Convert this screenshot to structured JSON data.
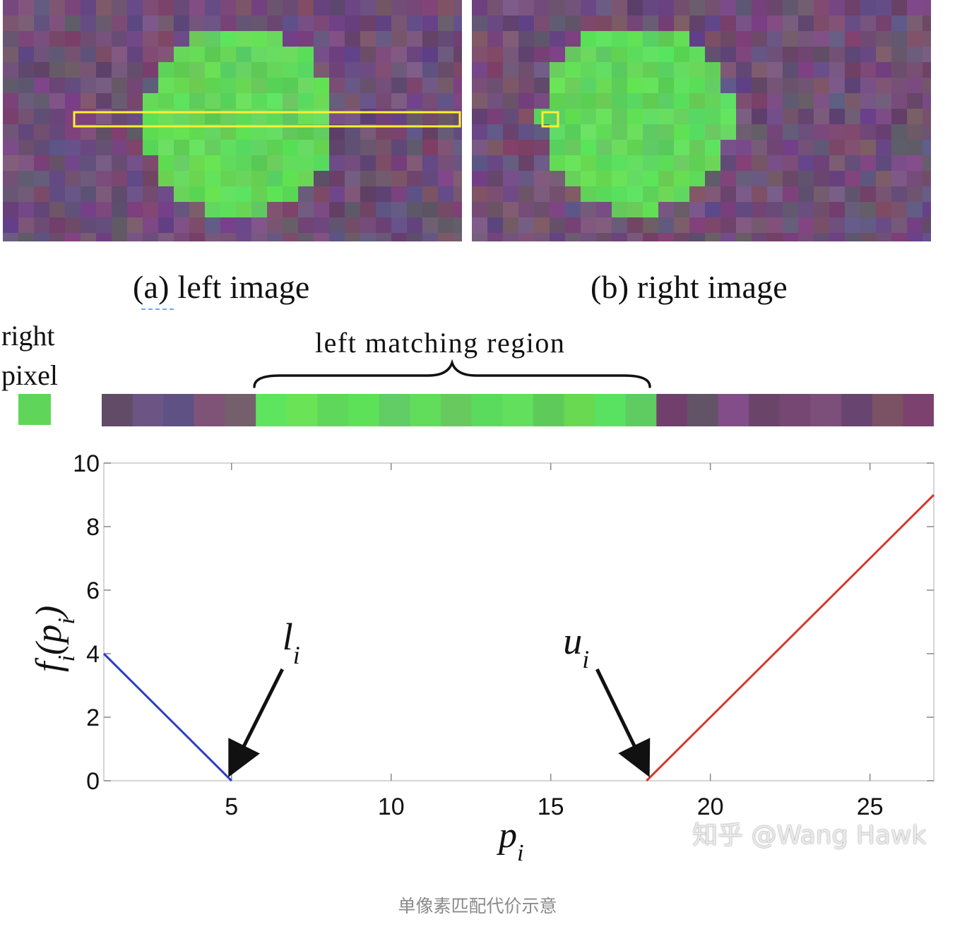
{
  "captions": {
    "left_image": "(a) left image",
    "right_image": "(b) right image"
  },
  "strip": {
    "right_pixel_label": [
      "right",
      "pixel"
    ],
    "matching_region_label": "left matching region"
  },
  "colors": {
    "background_purple": "#6a4e78",
    "disc_green": "#5fd65a",
    "highlight_box": "#ffee33",
    "lower_bound_line": "#2b3fc9",
    "upper_bound_line": "#d43a2c"
  },
  "chart_data": {
    "type": "line",
    "xlabel": "p_i",
    "ylabel": "f_i(p_i)",
    "xlim": [
      1,
      27
    ],
    "ylim": [
      0,
      10
    ],
    "x_ticks": [
      5,
      10,
      15,
      20,
      25
    ],
    "y_ticks": [
      0,
      2,
      4,
      6,
      8,
      10
    ],
    "grid": false,
    "series": [
      {
        "color": "#2b3fc9",
        "x": [
          1,
          5
        ],
        "y": [
          4,
          0
        ]
      },
      {
        "color": "#d43a2c",
        "x": [
          18,
          27
        ],
        "y": [
          0,
          9
        ]
      }
    ],
    "annotations": [
      {
        "label": "l",
        "subscript": "i",
        "x": 5,
        "y": 0
      },
      {
        "label": "u",
        "subscript": "i",
        "x": 18,
        "y": 0
      }
    ]
  },
  "watermark": "知乎 @Wang Hawk",
  "figure_caption": "单像素匹配代价示意"
}
